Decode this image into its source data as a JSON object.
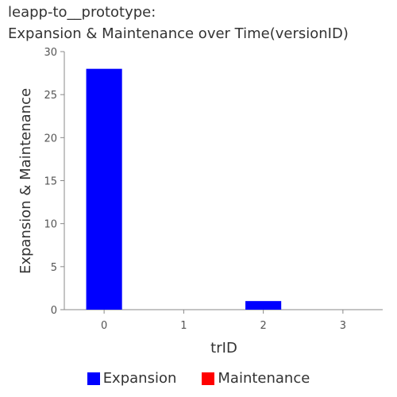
{
  "chart_data": {
    "type": "bar",
    "title_line1": "leapp-to__prototype:",
    "title_line2": "Expansion & Maintenance over Time(versionID)",
    "xlabel": "trID",
    "ylabel": "Expansion & Maintenance",
    "categories": [
      "0",
      "1",
      "2",
      "3"
    ],
    "series": [
      {
        "name": "Expansion",
        "color": "#0000ff",
        "values": [
          28,
          0,
          1,
          0
        ]
      },
      {
        "name": "Maintenance",
        "color": "#ff0000",
        "values": [
          0,
          0,
          0,
          0
        ]
      }
    ],
    "ylim": [
      0,
      30
    ],
    "yticks": [
      0,
      5,
      10,
      15,
      20,
      25,
      30
    ],
    "grid": false,
    "legend_position": "bottom"
  }
}
